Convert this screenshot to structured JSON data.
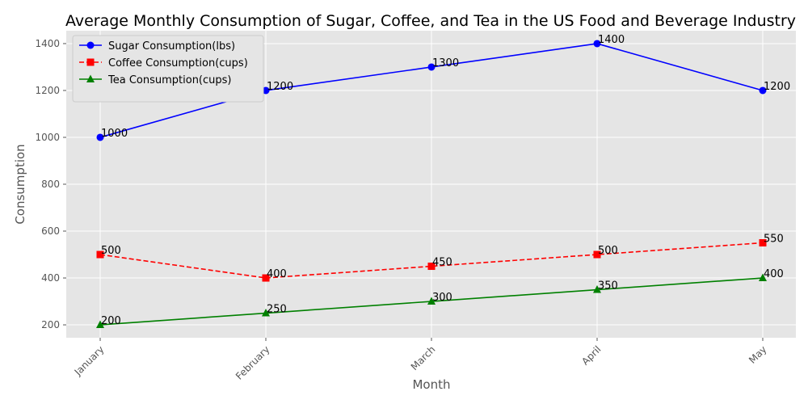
{
  "chart_data": {
    "type": "line",
    "title": "Average Monthly Consumption of Sugar, Coffee, and Tea in the US Food and Beverage Industry",
    "xlabel": "Month",
    "ylabel": "Consumption",
    "categories": [
      "January",
      "February",
      "March",
      "April",
      "May"
    ],
    "ylim": [
      145,
      1455
    ],
    "yticks": [
      200,
      400,
      600,
      800,
      1000,
      1200,
      1400
    ],
    "grid": true,
    "legend_position": "top-left",
    "series": [
      {
        "name": "Sugar Consumption(lbs)",
        "values": [
          1000,
          1200,
          1300,
          1400,
          1200
        ],
        "color": "#0000ff",
        "marker": "circle",
        "dash": "solid"
      },
      {
        "name": "Coffee Consumption(cups)",
        "values": [
          500,
          400,
          450,
          500,
          550
        ],
        "color": "#ff0000",
        "marker": "square",
        "dash": "dashed"
      },
      {
        "name": "Tea Consumption(cups)",
        "values": [
          200,
          250,
          300,
          350,
          400
        ],
        "color": "#008000",
        "marker": "triangle",
        "dash": "solid"
      }
    ],
    "colors": {
      "plot_background": "#e5e5e5",
      "grid": "#ffffff",
      "tick_text": "#555555"
    }
  }
}
